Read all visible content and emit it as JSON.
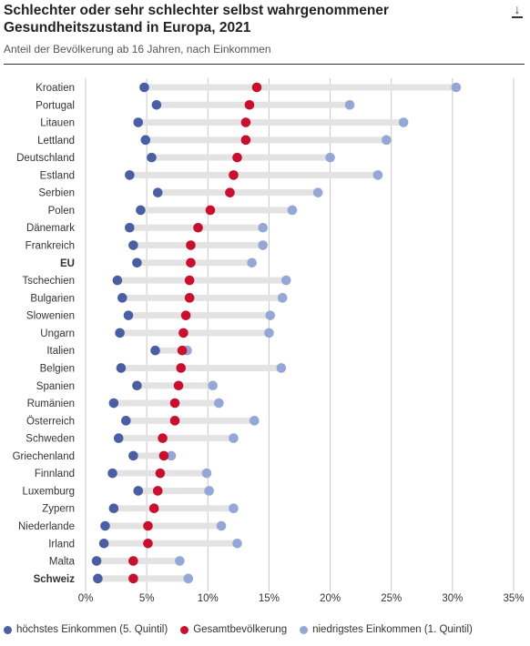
{
  "header": {
    "title": "Schlechter oder sehr schlechter selbst wahrgenommener Gesundheitszustand in Europa, 2021",
    "subtitle": "Anteil der Bevölkerung ab 16 Jahren, nach Einkommen",
    "download_icon": "download-icon"
  },
  "colors": {
    "high": "#4a5fa3",
    "total": "#c8102e",
    "low": "#94a7d6",
    "connector": "#e3e3e3",
    "grid": "#c8c8c8"
  },
  "chart_data": {
    "type": "dumbbell",
    "title": "Schlechter oder sehr schlechter selbst wahrgenommener Gesundheitszustand in Europa, 2021",
    "subtitle": "Anteil der Bevölkerung ab 16 Jahren, nach Einkommen",
    "xlim": [
      0,
      35
    ],
    "x_ticks": [
      "0%",
      "5%",
      "10%",
      "15%",
      "20%",
      "25%",
      "30%",
      "35%"
    ],
    "grid": true,
    "legend_position": "bottom",
    "bold_categories": [
      "EU",
      "Schweiz"
    ],
    "categories": [
      "Kroatien",
      "Portugal",
      "Litauen",
      "Lettland",
      "Deutschland",
      "Estland",
      "Serbien",
      "Polen",
      "Dänemark",
      "Frankreich",
      "EU",
      "Tschechien",
      "Bulgarien",
      "Slowenien",
      "Ungarn",
      "Italien",
      "Belgien",
      "Spanien",
      "Rumänien",
      "Österreich",
      "Schweden",
      "Griechenland",
      "Finnland",
      "Luxemburg",
      "Zypern",
      "Niederlande",
      "Irland",
      "Malta",
      "Schweiz"
    ],
    "series": [
      {
        "name": "höchstes Einkommen (5. Quintil)",
        "values": [
          4.8,
          5.8,
          4.3,
          4.9,
          5.4,
          3.6,
          5.9,
          4.5,
          3.6,
          3.9,
          4.2,
          2.6,
          3.0,
          3.5,
          2.8,
          5.7,
          2.9,
          4.2,
          2.3,
          3.3,
          2.7,
          3.9,
          2.2,
          4.3,
          2.3,
          1.6,
          1.5,
          0.9,
          1.0
        ]
      },
      {
        "name": "Gesamtbevölkerung",
        "values": [
          14.0,
          13.4,
          13.1,
          13.1,
          12.4,
          12.1,
          11.8,
          10.2,
          9.2,
          8.6,
          8.6,
          8.5,
          8.5,
          8.2,
          8.0,
          7.9,
          7.8,
          7.6,
          7.3,
          7.3,
          6.3,
          6.4,
          6.1,
          5.9,
          5.6,
          5.1,
          5.1,
          3.9,
          3.9
        ]
      },
      {
        "name": "niedrigstes Einkommen (1. Quintil)",
        "values": [
          30.3,
          21.6,
          26.0,
          24.6,
          20.0,
          23.9,
          19.0,
          16.9,
          14.5,
          14.5,
          13.6,
          16.4,
          16.1,
          15.1,
          15.0,
          8.3,
          16.0,
          10.4,
          10.9,
          13.8,
          12.1,
          7.0,
          9.9,
          10.1,
          12.1,
          11.1,
          12.4,
          7.7,
          8.4
        ]
      }
    ]
  }
}
